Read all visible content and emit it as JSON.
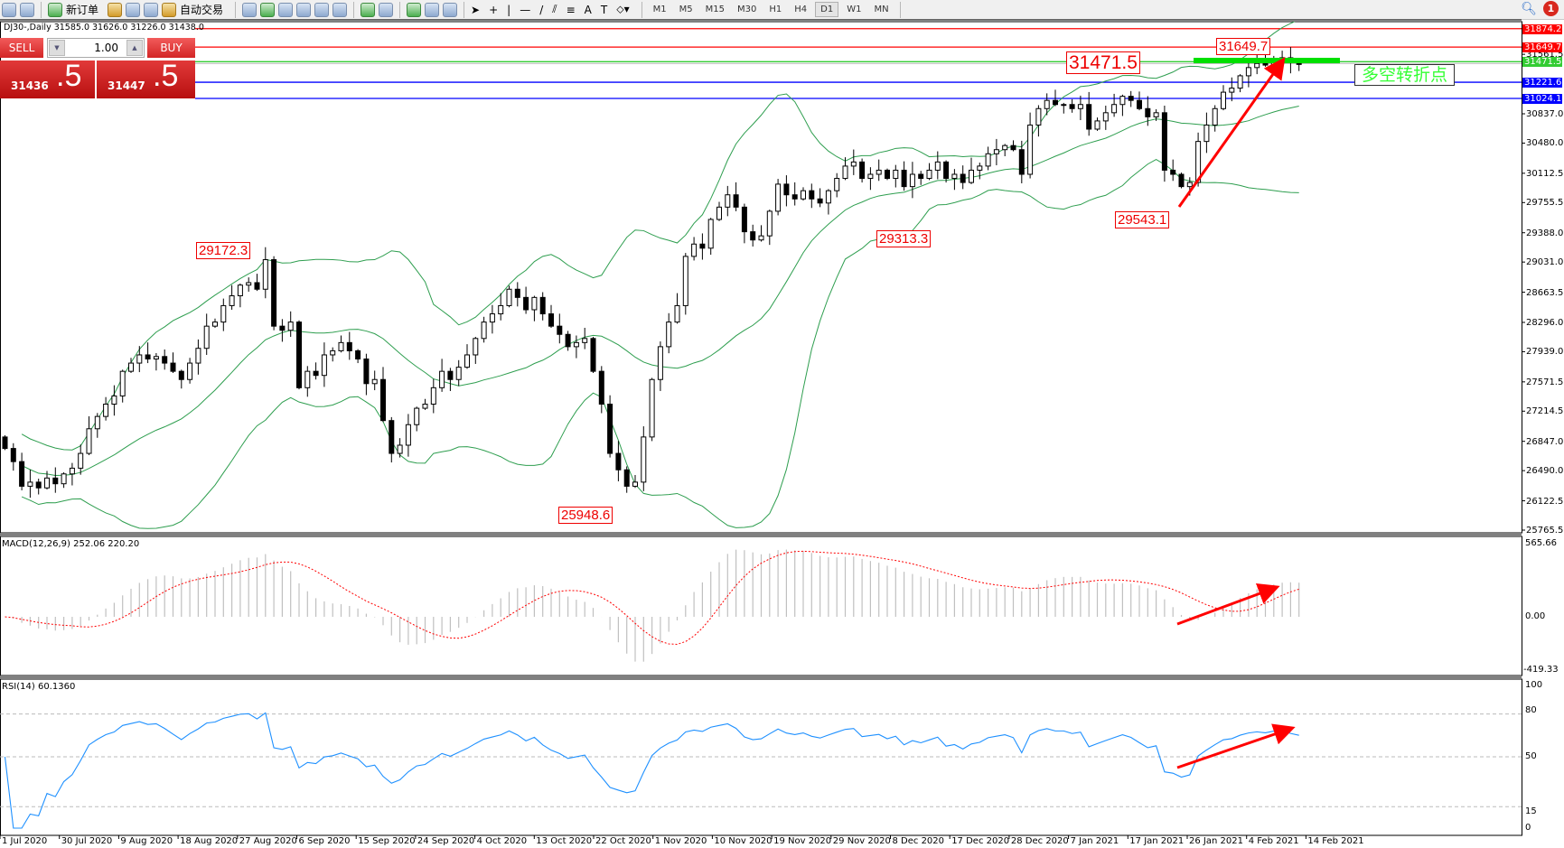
{
  "toolbar": {
    "new_order": "新订单",
    "auto_trading": "自动交易",
    "timeframes": [
      "M1",
      "M5",
      "M15",
      "M30",
      "H1",
      "H4",
      "D1",
      "W1",
      "MN"
    ],
    "active_timeframe": "D1",
    "notification_count": "1"
  },
  "chart_title": "DJ30-,Daily  31585.0 31626.0 31226.0 31438.0",
  "trade_panel": {
    "sell_label": "SELL",
    "buy_label": "BUY",
    "lot": "1.00",
    "sell_price_main": "31436",
    "sell_price_pip": ".5",
    "buy_price_main": "31447",
    "buy_price_pip": ".5"
  },
  "annotations": {
    "high_aug": "29172.3",
    "low_oct": "25948.6",
    "low_dec": "29313.3",
    "low_jan": "29543.1",
    "high_feb": "31649.7",
    "pivot": "31471.5",
    "pivot_text": "多空转折点"
  },
  "levels": [
    {
      "price": 31874.2,
      "label": "31874.2",
      "color": "#ff0000"
    },
    {
      "price": 31649.7,
      "label": "31649.7",
      "color": "#ff0000"
    },
    {
      "price": 31471.5,
      "label": "31471.5",
      "color": "#33cc33"
    },
    {
      "price": 31221.6,
      "label": "31221.6",
      "color": "#0000ff"
    },
    {
      "price": 31024.1,
      "label": "31024.1",
      "color": "#0000ff"
    }
  ],
  "price_axis": [
    "31561.5",
    "30837.0",
    "30480.0",
    "30112.5",
    "29755.5",
    "29388.0",
    "29031.0",
    "28663.5",
    "28296.0",
    "27939.0",
    "27571.5",
    "27214.5",
    "26847.0",
    "26490.0",
    "26122.5",
    "25765.5"
  ],
  "macd": {
    "label": "MACD(12,26,9) 252.06 220.20",
    "axis": [
      "565.66",
      "0.00",
      "-419.33"
    ]
  },
  "rsi": {
    "label": "RSI(14) 60.1360",
    "axis": [
      "100",
      "80",
      "50",
      "15",
      "0"
    ]
  },
  "date_axis": [
    "1 Jul 2020",
    "30 Jul 2020",
    "9 Aug 2020",
    "18 Aug 2020",
    "27 Aug 2020",
    "6 Sep 2020",
    "15 Sep 2020",
    "24 Sep 2020",
    "4 Oct 2020",
    "13 Oct 2020",
    "22 Oct 2020",
    "1 Nov 2020",
    "10 Nov 2020",
    "19 Nov 2020",
    "29 Nov 2020",
    "8 Dec 2020",
    "17 Dec 2020",
    "28 Dec 2020",
    "7 Jan 2021",
    "17 Jan 2021",
    "26 Jan 2021",
    "4 Feb 2021",
    "14 Feb 2021"
  ],
  "chart_data": {
    "type": "candlestick",
    "symbol": "DJ30-",
    "timeframe": "Daily",
    "ylim": [
      25765.5,
      31929.0
    ],
    "first_open": 26900,
    "closes": [
      26760,
      26600,
      26300,
      26350,
      26280,
      26400,
      26330,
      26450,
      26520,
      26700,
      27000,
      27150,
      27300,
      27400,
      27700,
      27800,
      27900,
      27850,
      27880,
      27800,
      27700,
      27600,
      27800,
      27980,
      28250,
      28300,
      28500,
      28620,
      28750,
      28780,
      28700,
      29060,
      28250,
      28200,
      28300,
      27500,
      27700,
      27650,
      27900,
      27950,
      28050,
      27950,
      27850,
      27550,
      27600,
      27100,
      26700,
      26800,
      27050,
      27250,
      27300,
      27500,
      27700,
      27600,
      27750,
      27900,
      28100,
      28300,
      28400,
      28500,
      28700,
      28600,
      28450,
      28600,
      28400,
      28250,
      28150,
      28000,
      28050,
      28100,
      27700,
      27300,
      26700,
      26500,
      26300,
      26350,
      26900,
      27600,
      28000,
      28300,
      28500,
      29100,
      29250,
      29200,
      29550,
      29700,
      29850,
      29700,
      29400,
      29300,
      29350,
      29650,
      29980,
      29850,
      29800,
      29900,
      29800,
      29750,
      29900,
      30050,
      30200,
      30250,
      30050,
      30100,
      30150,
      30050,
      30150,
      29950,
      30100,
      30050,
      30150,
      30250,
      30050,
      30100,
      30000,
      30150,
      30200,
      30350,
      30400,
      30450,
      30400,
      30100,
      30700,
      30900,
      31000,
      30950,
      30950,
      30900,
      30950,
      30650,
      30750,
      30850,
      30950,
      31050,
      31000,
      30900,
      30800,
      30850,
      30150,
      30100,
      29950,
      30000,
      30500,
      30700,
      30900,
      31100,
      31150,
      31300,
      31400,
      31450,
      31430,
      31500,
      31520,
      31470,
      31438
    ],
    "indicators": [
      "Bollinger Bands(20,2)",
      "MACD(12,26,9)",
      "RSI(14)"
    ],
    "colors": {
      "bands": "#2e9e4f",
      "macd_signal": "#ff0000",
      "macd_hist": "#c0c0c0",
      "rsi": "#1e90ff",
      "arrow": "#ff0000"
    }
  }
}
